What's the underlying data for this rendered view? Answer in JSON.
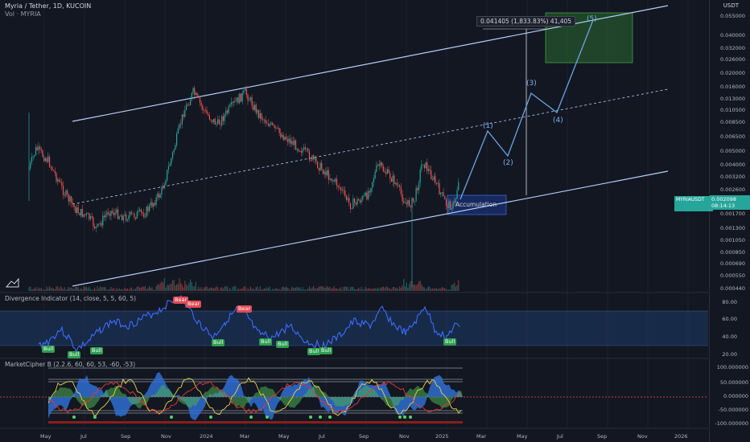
{
  "header": {
    "title": "Myria / Tether, 1D, KUCOIN",
    "vol_label": "Vol · MYRIA",
    "currency": "USDT"
  },
  "measure_label": "0.041405 (1,833.83%) 41,405",
  "accumulation_label": "Accumulation",
  "waves": [
    "(1)",
    "(2)",
    "(3)",
    "(4)",
    "(5)"
  ],
  "ticker": {
    "symbol": "MYRIAUSDT",
    "price": "0.002098",
    "countdown": "08:14:13",
    "color": "#26a69a"
  },
  "price_scale": [
    "0.055000",
    "0.040000",
    "0.032000",
    "0.026000",
    "0.020000",
    "0.016000",
    "0.013000",
    "0.010500",
    "0.008500",
    "0.006500",
    "0.005000",
    "0.004000",
    "0.003200",
    "0.002600",
    "0.001700",
    "0.001300",
    "0.001050",
    "0.000850",
    "0.000690",
    "0.000550",
    "0.000440"
  ],
  "divergence": {
    "title": "Divergence Indicator (14, close, 5, 5, 60, 5)",
    "scale": [
      "80.00",
      "60.00",
      "40.00",
      "20.00"
    ],
    "bull_labels": [
      "Bull",
      "Bull",
      "Bull",
      "Bull",
      "Bull",
      "Bull",
      "Bull",
      "Bull",
      "Bull"
    ],
    "bear_labels": [
      "Bear",
      "Bear",
      "Bear"
    ]
  },
  "cipher": {
    "title": "MarketCipher B (2.2.6, 60, 60, 53, -60, -53)",
    "scale": [
      "100.000000",
      "50.000000",
      "0.000000",
      "-50.000000",
      "-100.000000"
    ]
  },
  "time_axis": [
    "May",
    "Jul",
    "Sep",
    "Nov",
    "2024",
    "Mar",
    "May",
    "Jul",
    "Sep",
    "Nov",
    "2025",
    "Mar",
    "May",
    "Jul",
    "Sep",
    "Nov",
    "2026"
  ],
  "colors": {
    "background": "#131722",
    "channel": "#b3cff5",
    "up": "#26a69a",
    "down": "#ef5350",
    "wave": "#6aa6e6",
    "target_box": "#2e7d32"
  }
}
